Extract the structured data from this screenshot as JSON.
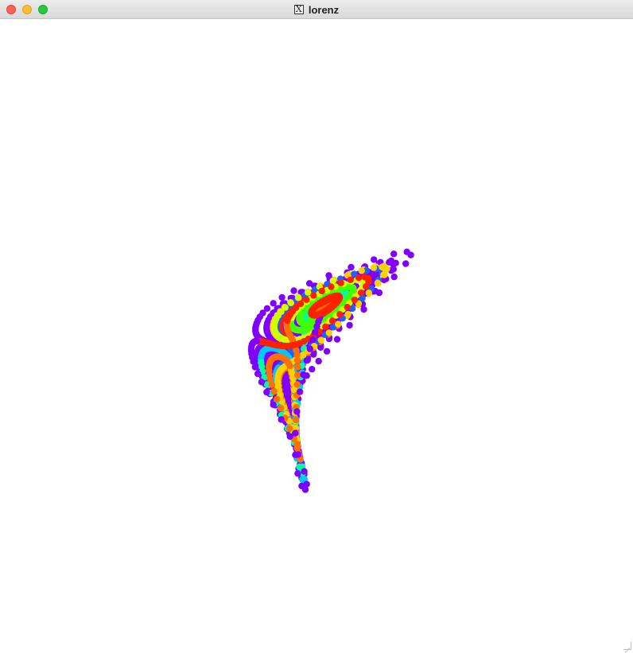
{
  "window": {
    "title": "lorenz",
    "app_icon": "x11-icon",
    "controls": [
      "close-button",
      "minimize-button",
      "zoom-button"
    ]
  },
  "plot": {
    "name": "lorenz-attractor",
    "background": "#ffffff",
    "palette": [
      "#8000ff",
      "#2060ff",
      "#00c8ff",
      "#00ffa0",
      "#40ff00",
      "#d0ff00",
      "#ffd000",
      "#ff7000",
      "#ff2000"
    ]
  }
}
